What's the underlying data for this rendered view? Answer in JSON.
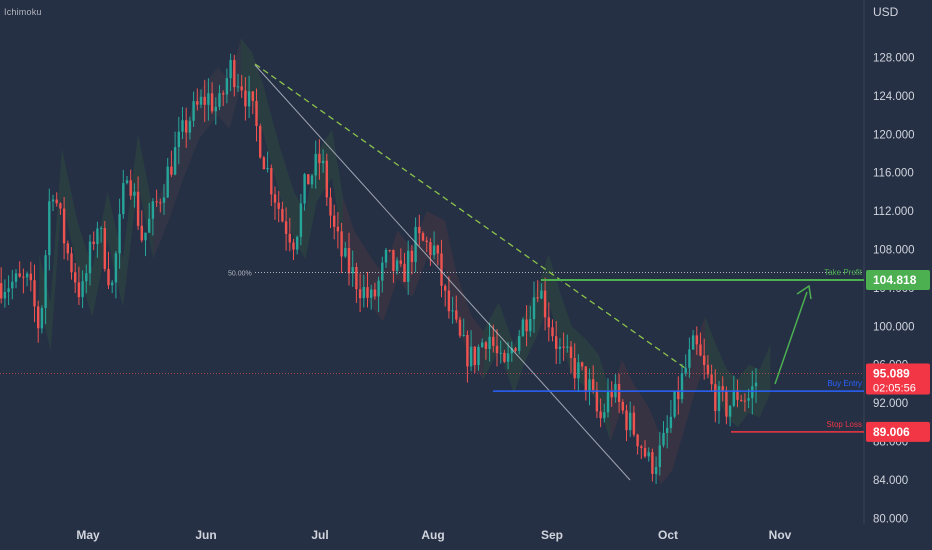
{
  "indicator": "Ichimoku",
  "currency": "USD",
  "colors": {
    "background": "#253045",
    "axis_text": "#d1d4dc",
    "up": "#26a69a",
    "down": "#ef5350",
    "take_profit": "#4caf50",
    "buy": "#2962ff",
    "stop_loss": "#f23645",
    "trendline": "#8bc34a",
    "fib": "#b2b5be"
  },
  "chart_data": {
    "type": "candlestick",
    "x_ticks": [
      "May",
      "Jun",
      "Jul",
      "Aug",
      "Sep",
      "Oct",
      "Nov"
    ],
    "y_ticks": [
      "80.000",
      "84.000",
      "88.000",
      "92.000",
      "96.000",
      "100.000",
      "104.000",
      "108.000",
      "112.000",
      "116.000",
      "120.000",
      "124.000",
      "128.000"
    ],
    "ylim": [
      80,
      132
    ],
    "levels": {
      "take_profit": {
        "label": "Take Profit",
        "value": "104.818"
      },
      "buy_entry": {
        "label": "Buy Entry",
        "value": "93.250"
      },
      "stop_loss": {
        "label": "Stop Loss",
        "value": "89.006"
      },
      "fib": {
        "label": "50.00%",
        "value": 105.6
      }
    },
    "current_price": {
      "value": "95.089",
      "countdown": "02:05:56"
    },
    "series_close_path": [
      [
        "Apr 15",
        104.5
      ],
      [
        "Apr 18",
        99.5
      ],
      [
        "Apr 21",
        115.5
      ],
      [
        "Apr 25",
        108
      ],
      [
        "Apr 29",
        103
      ],
      [
        "May 3",
        111
      ],
      [
        "May 7",
        104
      ],
      [
        "May 11",
        117
      ],
      [
        "May 15",
        109
      ],
      [
        "May 19",
        113
      ],
      [
        "May 23",
        117.5
      ],
      [
        "May 27",
        121.5
      ],
      [
        "Jun 1",
        124
      ],
      [
        "Jun 4",
        122.5
      ],
      [
        "Jun 7",
        127
      ],
      [
        "Jun 10",
        125.5
      ],
      [
        "Jun 13",
        122
      ],
      [
        "Jun 17",
        116
      ],
      [
        "Jun 21",
        111
      ],
      [
        "Jun 24",
        109
      ],
      [
        "Jun 27",
        115
      ],
      [
        "Jul 1",
        117.5
      ],
      [
        "Jul 4",
        110.5
      ],
      [
        "Jul 7",
        107
      ],
      [
        "Jul 12",
        104
      ],
      [
        "Jul 15",
        102.5
      ],
      [
        "Jul 19",
        107
      ],
      [
        "Jul 23",
        105
      ],
      [
        "Jul 27",
        109
      ],
      [
        "Aug 1",
        108
      ],
      [
        "Aug 4",
        102.5
      ],
      [
        "Aug 8",
        98
      ],
      [
        "Aug 11",
        96.5
      ],
      [
        "Aug 15",
        99.5
      ],
      [
        "Aug 19",
        95
      ],
      [
        "Aug 22",
        98.5
      ],
      [
        "Aug 25",
        101
      ],
      [
        "Aug 28",
        104.5
      ],
      [
        "Aug 31",
        100.5
      ],
      [
        "Sep 3",
        97
      ],
      [
        "Sep 7",
        95.5
      ],
      [
        "Sep 10",
        94
      ],
      [
        "Sep 13",
        90
      ],
      [
        "Sep 16",
        93.5
      ],
      [
        "Sep 19",
        91
      ],
      [
        "Sep 23",
        88.5
      ],
      [
        "Sep 26",
        85.5
      ],
      [
        "Sep 29",
        87
      ],
      [
        "Oct 2",
        91
      ],
      [
        "Oct 5",
        95
      ],
      [
        "Oct 8",
        98
      ],
      [
        "Oct 11",
        95
      ],
      [
        "Oct 14",
        92.5
      ],
      [
        "Oct 17",
        91.5
      ],
      [
        "Oct 20",
        93
      ],
      [
        "Oct 23",
        92.5
      ],
      [
        "Oct 26",
        95.089
      ]
    ]
  }
}
